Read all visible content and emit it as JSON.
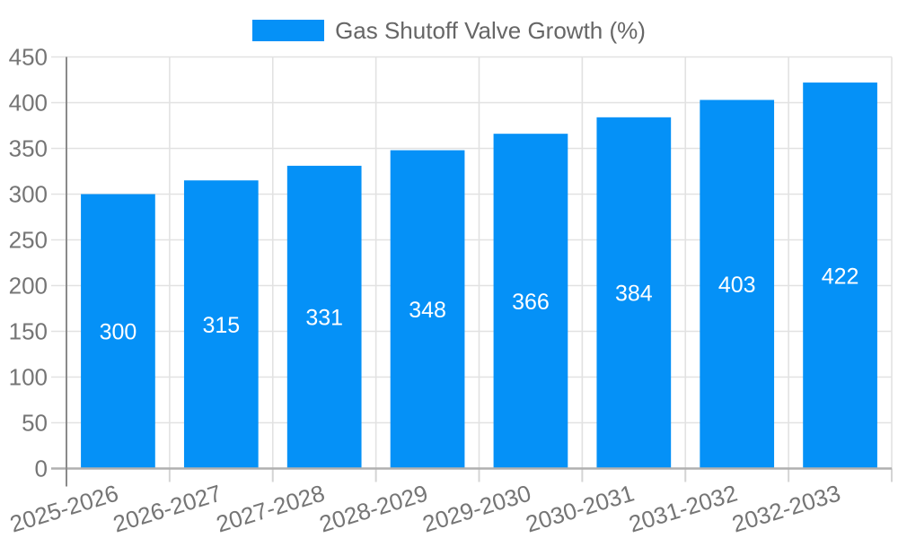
{
  "chart_data": {
    "type": "bar",
    "title": "",
    "legend": "Gas Shutoff Valve Growth (%)",
    "legend_position": "top-center",
    "categories": [
      "2025-2026",
      "2026-2027",
      "2027-2028",
      "2028-2029",
      "2029-2030",
      "2030-2031",
      "2031-2032",
      "2032-2033"
    ],
    "values": [
      300,
      315,
      331,
      348,
      366,
      384,
      403,
      422
    ],
    "xlabel": "",
    "ylabel": "",
    "ylim": [
      0,
      450
    ],
    "yticks": [
      0,
      50,
      100,
      150,
      200,
      250,
      300,
      350,
      400,
      450
    ],
    "grid": true,
    "x_label_rotation_deg": -17,
    "value_label_position": "inside-center",
    "colors": {
      "bar": "#0591f7",
      "value_label": "#ffffff",
      "axis_label": "#757575",
      "legend_text": "#666666",
      "grid_line": "#e2e2e2",
      "baseline": "#b0b0b0",
      "axis_line": "#8a8a8a",
      "tick": "#d4d4d4",
      "background": "#ffffff"
    }
  }
}
